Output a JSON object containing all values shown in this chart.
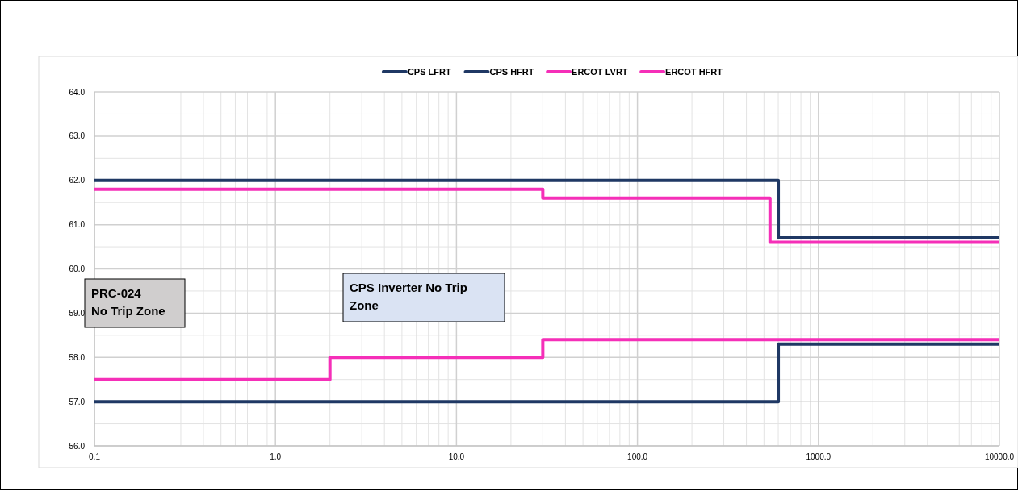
{
  "chart_data": {
    "type": "step",
    "log": "x",
    "grid": true,
    "legend": "top",
    "line_style": "solid",
    "marker": "none",
    "xlim": [
      0.1,
      10000
    ],
    "xticks": [
      {
        "value": 0.1,
        "label": "0.1"
      },
      {
        "value": 1,
        "label": "1.0"
      },
      {
        "value": 10,
        "label": "10.0"
      },
      {
        "value": 100,
        "label": "100.0"
      },
      {
        "value": 1000,
        "label": "1000.0"
      },
      {
        "value": 10000,
        "label": "10000.0"
      }
    ],
    "ylim": [
      56,
      64
    ],
    "yticks": [
      {
        "value": 56,
        "label": "56.0"
      },
      {
        "value": 57,
        "label": "57.0"
      },
      {
        "value": 58,
        "label": "58.0"
      },
      {
        "value": 59,
        "label": "59.0"
      },
      {
        "value": 60,
        "label": "60.0"
      },
      {
        "value": 61,
        "label": "61.0"
      },
      {
        "value": 62,
        "label": "62.0"
      },
      {
        "value": 63,
        "label": "63.0"
      },
      {
        "value": 64,
        "label": "64.0"
      }
    ],
    "series": [
      {
        "name": "CPS LFRT",
        "color": "#1f3864",
        "x": [
          0.1,
          600,
          10000
        ],
        "values": [
          57.0,
          58.3,
          58.3
        ]
      },
      {
        "name": "CPS HFRT",
        "color": "#1f3864",
        "x": [
          0.1,
          600,
          10000
        ],
        "values": [
          62.0,
          60.7,
          60.7
        ]
      },
      {
        "name": "ERCOT LVRT",
        "color": "#f52fb8",
        "x": [
          0.1,
          2,
          30,
          10000
        ],
        "values": [
          57.5,
          58.0,
          58.4,
          58.4
        ]
      },
      {
        "name": "ERCOT HFRT",
        "color": "#f52fb8",
        "x": [
          0.1,
          30,
          540,
          10000
        ],
        "values": [
          61.8,
          61.6,
          60.6,
          60.6
        ]
      }
    ],
    "annotations": [
      "PRC-024\nNo Trip Zone",
      "CPS Inverter No Trip Zone"
    ]
  }
}
